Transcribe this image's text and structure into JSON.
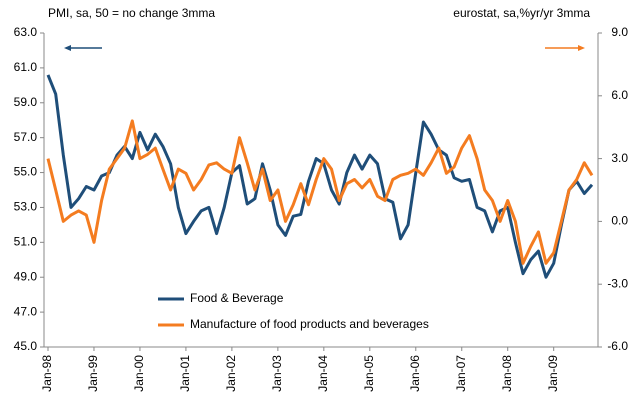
{
  "chart_data": {
    "type": "line",
    "annotations": [
      "PMI, sa, 50 = no change 3mma",
      "eurostat, sa,%yr/yr 3mma"
    ],
    "categories": [
      "Jan-98",
      null,
      null,
      null,
      null,
      null,
      "Jan-99",
      null,
      null,
      null,
      null,
      null,
      "Jan-00",
      null,
      null,
      null,
      null,
      null,
      "Jan-01",
      null,
      null,
      null,
      null,
      null,
      "Jan-02",
      null,
      null,
      null,
      null,
      null,
      "Jan-03",
      null,
      null,
      null,
      null,
      null,
      "Jan-04",
      null,
      null,
      null,
      null,
      null,
      "Jan-05",
      null,
      null,
      null,
      null,
      null,
      "Jan-06",
      null,
      null,
      null,
      null,
      null,
      "Jan-07",
      null,
      null,
      null,
      null,
      null,
      "Jan-08",
      null,
      null,
      null,
      null,
      null,
      "Jan-09",
      null,
      null,
      null,
      null,
      null
    ],
    "series": [
      {
        "name": "Food & Beverage",
        "color": "#1f4e79",
        "axis": "y",
        "values": [
          60.6,
          59.5,
          56.0,
          53.0,
          53.5,
          54.2,
          54.0,
          54.8,
          55.0,
          56.0,
          56.5,
          55.8,
          57.3,
          56.3,
          57.2,
          56.5,
          55.5,
          53.0,
          51.5,
          52.2,
          52.8,
          53.0,
          51.5,
          53.0,
          55.0,
          55.4,
          53.2,
          53.5,
          55.5,
          54.0,
          52.0,
          51.4,
          52.5,
          52.6,
          54.5,
          55.8,
          55.5,
          54.0,
          53.2,
          55.0,
          56.0,
          55.2,
          56.0,
          55.5,
          53.5,
          53.3,
          51.2,
          52.0,
          55.0,
          57.9,
          57.2,
          56.3,
          56.0,
          54.7,
          54.5,
          54.6,
          53.0,
          52.8,
          51.6,
          52.8,
          53.0,
          51.0,
          49.2,
          50.0,
          50.5,
          49.0,
          49.8,
          52.0,
          54.0,
          54.5,
          53.8,
          54.3
        ]
      },
      {
        "name": "Manufacture of food products and beverages",
        "color": "#f47c20",
        "axis": "y2",
        "values": [
          3.0,
          1.5,
          0.0,
          0.3,
          0.5,
          0.3,
          -1.0,
          1.0,
          2.5,
          3.0,
          3.5,
          4.8,
          3.0,
          3.2,
          3.5,
          2.5,
          1.5,
          2.5,
          2.3,
          1.5,
          2.0,
          2.7,
          2.8,
          2.5,
          2.3,
          4.0,
          2.8,
          1.5,
          2.5,
          1.0,
          1.5,
          0.0,
          0.8,
          1.8,
          0.8,
          2.0,
          3.0,
          2.5,
          1.0,
          1.8,
          2.0,
          1.6,
          2.0,
          1.2,
          1.0,
          2.0,
          2.2,
          2.3,
          2.5,
          2.2,
          2.8,
          3.5,
          2.3,
          2.6,
          3.5,
          4.1,
          3.0,
          1.5,
          1.0,
          0.0,
          1.0,
          0.0,
          -2.0,
          -1.2,
          -0.5,
          -2.0,
          -1.5,
          0.0,
          1.5,
          2.0,
          2.8,
          2.2
        ]
      }
    ],
    "ylim": [
      45,
      63
    ],
    "yticks": [
      {
        "value": 45,
        "label": "45.0"
      },
      {
        "value": 47,
        "label": "47.0"
      },
      {
        "value": 49,
        "label": "49.0"
      },
      {
        "value": 51,
        "label": "51.0"
      },
      {
        "value": 53,
        "label": "53.0"
      },
      {
        "value": 55,
        "label": "55.0"
      },
      {
        "value": 57,
        "label": "57.0"
      },
      {
        "value": 59,
        "label": "59.0"
      },
      {
        "value": 61,
        "label": "61.0"
      },
      {
        "value": 63,
        "label": "63.0"
      }
    ],
    "y2lim": [
      -6,
      9
    ],
    "y2ticks": [
      {
        "value": -6,
        "label": "-6.0"
      },
      {
        "value": -3,
        "label": "-3.0"
      },
      {
        "value": 0,
        "label": "0.0"
      },
      {
        "value": 3,
        "label": "3.0"
      },
      {
        "value": 6,
        "label": "6.0"
      },
      {
        "value": 9,
        "label": "9.0"
      }
    ],
    "grid": false,
    "legend": "lower left"
  }
}
